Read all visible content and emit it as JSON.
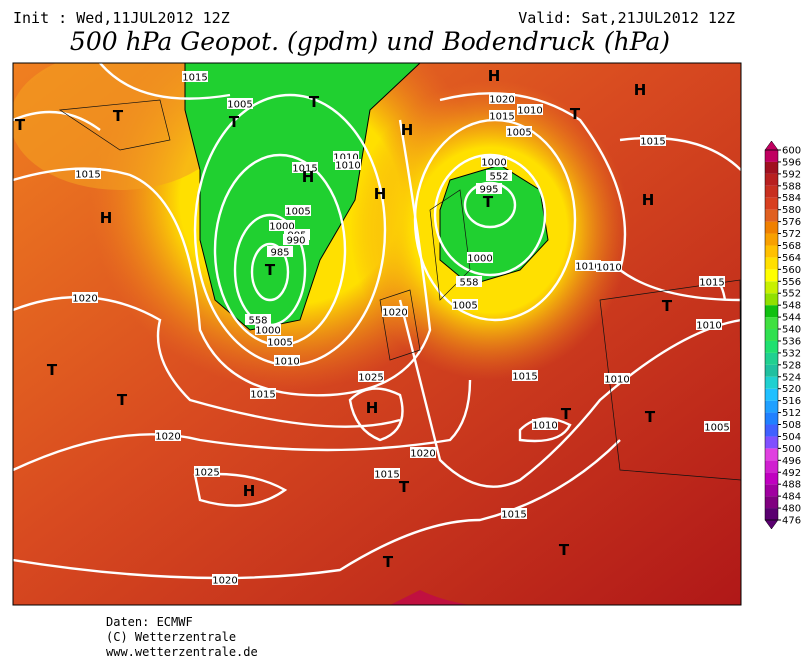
{
  "header": {
    "init": "Init : Wed,11JUL2012 12Z",
    "valid": "Valid: Sat,21JUL2012 12Z",
    "title": "500 hPa Geopot. (gpdm) und Bodendruck (hPa)"
  },
  "map": {
    "labels": [
      "1015",
      "1005",
      "1015",
      "1010",
      "1010",
      "1005",
      "1000",
      "995",
      "990",
      "985",
      "1000",
      "1005",
      "1010",
      "1015",
      "1020",
      "1025",
      "1020",
      "1015",
      "1020",
      "1020",
      "1025",
      "1015",
      "1020",
      "1015",
      "1020",
      "1015",
      "1010",
      "1005",
      "1000",
      "995",
      "1000",
      "1005",
      "1015",
      "1010",
      "1010",
      "1015",
      "1015",
      "1010",
      "1005",
      "1010",
      "1010",
      "552",
      "558",
      "558"
    ],
    "centers": [
      "T",
      "T",
      "H",
      "T",
      "T",
      "H",
      "H",
      "T",
      "T",
      "T",
      "T",
      "T",
      "T",
      "H",
      "H",
      "T",
      "H",
      "H",
      "H",
      "H",
      "T",
      "T",
      "T",
      "T"
    ]
  },
  "colorbar": {
    "ticks": [
      476,
      480,
      484,
      488,
      492,
      496,
      500,
      504,
      508,
      512,
      516,
      520,
      524,
      528,
      532,
      536,
      540,
      544,
      548,
      552,
      556,
      560,
      564,
      568,
      572,
      576,
      580,
      584,
      588,
      592,
      596,
      600
    ],
    "colors": [
      "#5a0070",
      "#800080",
      "#a000a0",
      "#c000c0",
      "#d020d0",
      "#e040e0",
      "#8050ff",
      "#4060ff",
      "#2080ff",
      "#20a0ff",
      "#20c0ff",
      "#20d0d0",
      "#20c0a0",
      "#20d090",
      "#20e070",
      "#30e050",
      "#40e040",
      "#10c010",
      "#90e000",
      "#c8f000",
      "#ffff00",
      "#ffe000",
      "#ffc000",
      "#f8a000",
      "#f08000",
      "#e06020",
      "#d84020",
      "#c83020",
      "#b82020",
      "#a01020",
      "#c00060"
    ]
  },
  "footer": {
    "source": "Daten: ECMWF",
    "copyright": "(C) Wetterzentrale",
    "url": "www.wetterzentrale.de"
  }
}
